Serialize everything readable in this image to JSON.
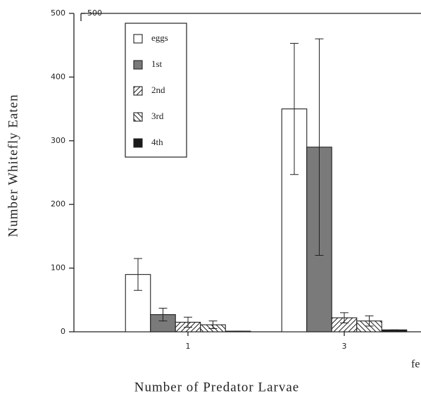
{
  "chart_data": {
    "type": "bar",
    "y_label": "Number Whitefly Eaten",
    "x_label": "Number of Predator Larvae",
    "annotation": "fe",
    "categories": [
      "1",
      "3"
    ],
    "series": [
      {
        "name": "eggs",
        "color": "#ffffff",
        "values": [
          90,
          350
        ],
        "errors": [
          25,
          103
        ]
      },
      {
        "name": "1st",
        "color": "#7a7a7a",
        "values": [
          27,
          290
        ],
        "errors": [
          10,
          170
        ]
      },
      {
        "name": "2nd",
        "color": "#ffffff",
        "hatch": "/",
        "values": [
          15,
          22
        ],
        "errors": [
          8,
          8
        ]
      },
      {
        "name": "3rd",
        "color": "#ffffff",
        "hatch": "\\",
        "values": [
          11,
          17
        ],
        "errors": [
          6,
          8
        ]
      },
      {
        "name": "4th",
        "color": "#1a1a1a",
        "values": [
          1,
          3
        ],
        "errors": [
          0,
          0
        ]
      }
    ],
    "ylim": [
      0,
      500
    ],
    "yticks": [
      0,
      100,
      200,
      300,
      400,
      500
    ],
    "y2lim": [
      0,
      500
    ],
    "y2ticks": [
      500
    ]
  }
}
